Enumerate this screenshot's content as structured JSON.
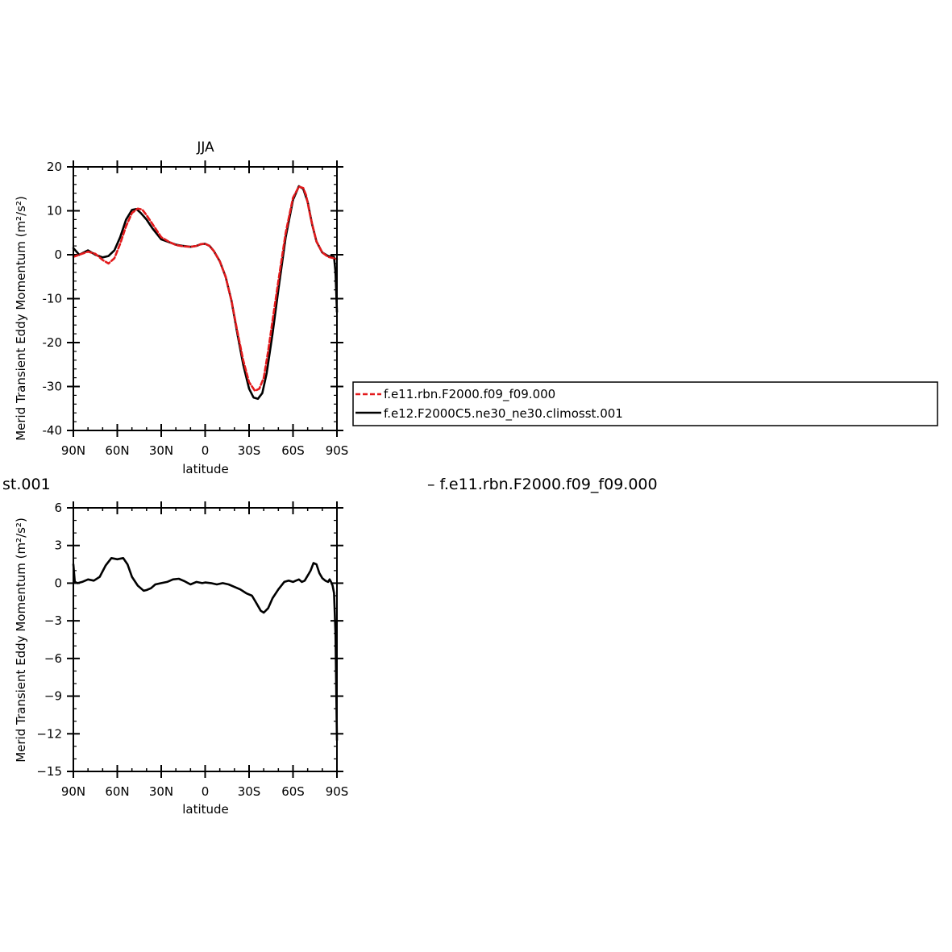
{
  "chart_data": [
    {
      "type": "line",
      "title": "JJA",
      "xlabel": "latitude",
      "ylabel": "Merid Transient Eddy Momentum (m²/s²)",
      "xlim": [
        90,
        -90
      ],
      "ylim": [
        -40,
        20
      ],
      "x_tick_values": [
        90,
        60,
        30,
        0,
        -30,
        -60,
        -90
      ],
      "x_tick_labels": [
        "90N",
        "60N",
        "30N",
        "0",
        "30S",
        "60S",
        "90S"
      ],
      "y_ticks": [
        20,
        10,
        0,
        -10,
        -20,
        -30,
        -40
      ],
      "y_tick_labels": [
        "20",
        "10",
        "0",
        "-10",
        "-20",
        "-30",
        "-40"
      ],
      "legend_position": "right",
      "series": [
        {
          "name": "f.e11.rbn.F2000.f09_f09.000",
          "color": "#e31a1c",
          "dash": "dashed",
          "x": [
            90,
            86,
            80,
            75,
            70,
            66,
            62,
            58,
            54,
            50,
            46,
            43,
            40,
            36,
            30,
            25,
            20,
            15,
            10,
            6,
            3,
            0,
            -3,
            -6,
            -10,
            -14,
            -18,
            -22,
            -26,
            -30,
            -34,
            -37,
            -40,
            -43,
            -46,
            -50,
            -55,
            -60,
            -64,
            -67,
            -69,
            -72,
            -76,
            -80,
            -84,
            -88,
            -90
          ],
          "y": [
            -0.5,
            0.0,
            0.7,
            0.2,
            -1.2,
            -2.0,
            -0.8,
            2.5,
            6.5,
            9.5,
            10.5,
            10.3,
            9.0,
            7.0,
            4.0,
            3.0,
            2.2,
            1.9,
            1.8,
            2.0,
            2.4,
            2.5,
            2.0,
            0.8,
            -1.5,
            -5.0,
            -10.5,
            -17.5,
            -24.0,
            -29.0,
            -31.0,
            -30.5,
            -28.0,
            -22.0,
            -15.0,
            -6.0,
            5.0,
            13.0,
            15.5,
            15.2,
            13.5,
            8.5,
            3.0,
            0.5,
            -0.5,
            -0.8,
            -1.0
          ]
        },
        {
          "name": "f.e12.F2000C5.ne30_ne30.climosst.001",
          "color": "#000000",
          "dash": "solid",
          "x": [
            90,
            86,
            80,
            75,
            70,
            66,
            62,
            58,
            54,
            50,
            47,
            44,
            40,
            36,
            30,
            25,
            20,
            15,
            10,
            6,
            3,
            0,
            -3,
            -6,
            -10,
            -14,
            -18,
            -22,
            -26,
            -30,
            -33,
            -36,
            -39,
            -42,
            -46,
            -50,
            -55,
            -60,
            -64,
            -67,
            -70,
            -73,
            -76,
            -80,
            -84,
            -88,
            -89,
            -90
          ],
          "y": [
            1.5,
            0.0,
            1.0,
            0.0,
            -0.6,
            -0.3,
            1.0,
            4.0,
            8.0,
            10.2,
            10.4,
            9.5,
            8.0,
            6.0,
            3.5,
            2.9,
            2.3,
            2.0,
            1.8,
            2.0,
            2.4,
            2.5,
            2.0,
            0.8,
            -1.5,
            -5.0,
            -10.5,
            -18.0,
            -25.0,
            -30.5,
            -32.5,
            -32.8,
            -31.5,
            -27.0,
            -18.0,
            -8.0,
            4.0,
            12.5,
            15.6,
            15.0,
            12.0,
            7.0,
            3.0,
            0.5,
            -0.3,
            -0.5,
            -4.0,
            -13.0
          ]
        }
      ]
    },
    {
      "type": "line",
      "title": "",
      "xlabel": "latitude",
      "ylabel": "Merid Transient Eddy Momentum (m²/s²)",
      "xlim": [
        90,
        -90
      ],
      "ylim": [
        -15,
        6
      ],
      "x_tick_values": [
        90,
        60,
        30,
        0,
        -30,
        -60,
        -90
      ],
      "x_tick_labels": [
        "90N",
        "60N",
        "30N",
        "0",
        "30S",
        "60S",
        "90S"
      ],
      "y_ticks": [
        6,
        3,
        0,
        -3,
        -6,
        -9,
        -12,
        -15
      ],
      "y_tick_labels": [
        "6",
        "3",
        "0",
        "−3",
        "−6",
        "−9",
        "−12",
        "−15"
      ],
      "overlay_text": {
        "left_fragment": "st.001",
        "right_fragment": "–  f.e11.rbn.F2000.f09_f09.000"
      },
      "series": [
        {
          "name": "",
          "color": "#000000",
          "dash": "solid",
          "x": [
            90,
            89,
            87,
            84,
            80,
            76,
            72,
            68,
            64,
            60,
            56,
            53,
            50,
            46,
            42,
            40,
            37,
            34,
            30,
            26,
            22,
            18,
            14,
            10,
            6,
            2,
            0,
            -4,
            -8,
            -12,
            -16,
            -20,
            -24,
            -28,
            -32,
            -35,
            -38,
            -40,
            -43,
            -46,
            -50,
            -54,
            -57,
            -60,
            -62,
            -64,
            -66,
            -68,
            -70,
            -72,
            -74,
            -76,
            -78,
            -80,
            -82,
            -84,
            -85,
            -86,
            -87,
            -88,
            -89,
            -90
          ],
          "y": [
            1.5,
            0.1,
            0.0,
            0.1,
            0.3,
            0.2,
            0.5,
            1.4,
            2.0,
            1.9,
            2.0,
            1.5,
            0.5,
            -0.2,
            -0.6,
            -0.55,
            -0.4,
            -0.1,
            0.0,
            0.1,
            0.3,
            0.35,
            0.15,
            -0.1,
            0.1,
            0.0,
            0.05,
            0.0,
            -0.1,
            0.0,
            -0.1,
            -0.3,
            -0.5,
            -0.8,
            -1.0,
            -1.6,
            -2.2,
            -2.35,
            -2.0,
            -1.2,
            -0.5,
            0.1,
            0.2,
            0.1,
            0.2,
            0.3,
            0.1,
            0.2,
            0.6,
            1.0,
            1.6,
            1.5,
            0.8,
            0.4,
            0.2,
            0.1,
            0.3,
            0.1,
            -0.2,
            -0.8,
            -4.0,
            -12.5
          ]
        }
      ]
    }
  ]
}
